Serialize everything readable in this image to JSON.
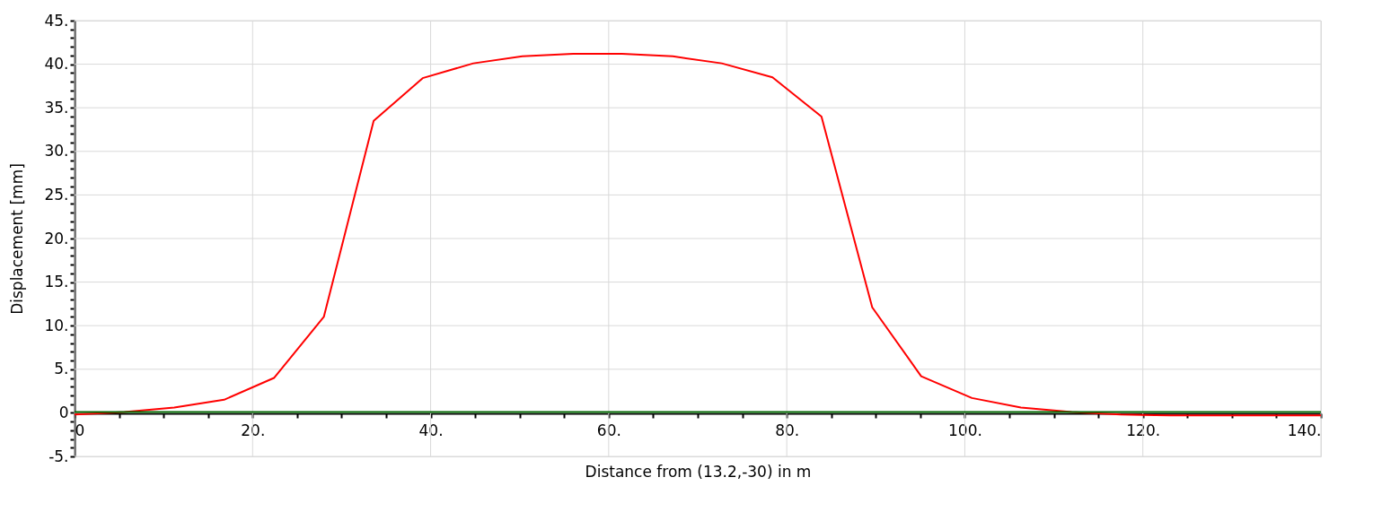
{
  "chart_data": {
    "type": "line",
    "xlabel": "Distance from (13.2,-30) in m",
    "ylabel": "Displacement [mm]",
    "xlim": [
      0,
      140
    ],
    "ylim": [
      -5,
      45
    ],
    "xticks": [
      {
        "value": 0,
        "label": "0"
      },
      {
        "value": 5,
        "label": null
      },
      {
        "value": 10,
        "label": null
      },
      {
        "value": 15,
        "label": null
      },
      {
        "value": 20,
        "label": "20."
      },
      {
        "value": 25,
        "label": null
      },
      {
        "value": 30,
        "label": null
      },
      {
        "value": 35,
        "label": null
      },
      {
        "value": 40,
        "label": "40."
      },
      {
        "value": 45,
        "label": null
      },
      {
        "value": 50,
        "label": null
      },
      {
        "value": 55,
        "label": null
      },
      {
        "value": 60,
        "label": "60."
      },
      {
        "value": 65,
        "label": null
      },
      {
        "value": 70,
        "label": null
      },
      {
        "value": 75,
        "label": null
      },
      {
        "value": 80,
        "label": "80."
      },
      {
        "value": 85,
        "label": null
      },
      {
        "value": 90,
        "label": null
      },
      {
        "value": 95,
        "label": null
      },
      {
        "value": 100,
        "label": "100."
      },
      {
        "value": 105,
        "label": null
      },
      {
        "value": 110,
        "label": null
      },
      {
        "value": 115,
        "label": null
      },
      {
        "value": 120,
        "label": "120."
      },
      {
        "value": 125,
        "label": null
      },
      {
        "value": 130,
        "label": null
      },
      {
        "value": 135,
        "label": null
      },
      {
        "value": 140,
        "label": "140."
      }
    ],
    "yticks": [
      {
        "value": -5,
        "label": "-5."
      },
      {
        "value": -4,
        "label": null
      },
      {
        "value": -3,
        "label": null
      },
      {
        "value": -2,
        "label": null
      },
      {
        "value": -1,
        "label": null
      },
      {
        "value": 0,
        "label": "0"
      },
      {
        "value": 1,
        "label": null
      },
      {
        "value": 2,
        "label": null
      },
      {
        "value": 3,
        "label": null
      },
      {
        "value": 4,
        "label": null
      },
      {
        "value": 5,
        "label": "5."
      },
      {
        "value": 6,
        "label": null
      },
      {
        "value": 7,
        "label": null
      },
      {
        "value": 8,
        "label": null
      },
      {
        "value": 9,
        "label": null
      },
      {
        "value": 10,
        "label": "10."
      },
      {
        "value": 11,
        "label": null
      },
      {
        "value": 12,
        "label": null
      },
      {
        "value": 13,
        "label": null
      },
      {
        "value": 14,
        "label": null
      },
      {
        "value": 15,
        "label": "15."
      },
      {
        "value": 16,
        "label": null
      },
      {
        "value": 17,
        "label": null
      },
      {
        "value": 18,
        "label": null
      },
      {
        "value": 19,
        "label": null
      },
      {
        "value": 20,
        "label": "20."
      },
      {
        "value": 21,
        "label": null
      },
      {
        "value": 22,
        "label": null
      },
      {
        "value": 23,
        "label": null
      },
      {
        "value": 24,
        "label": null
      },
      {
        "value": 25,
        "label": "25."
      },
      {
        "value": 26,
        "label": null
      },
      {
        "value": 27,
        "label": null
      },
      {
        "value": 28,
        "label": null
      },
      {
        "value": 29,
        "label": null
      },
      {
        "value": 30,
        "label": "30."
      },
      {
        "value": 31,
        "label": null
      },
      {
        "value": 32,
        "label": null
      },
      {
        "value": 33,
        "label": null
      },
      {
        "value": 34,
        "label": null
      },
      {
        "value": 35,
        "label": "35."
      },
      {
        "value": 36,
        "label": null
      },
      {
        "value": 37,
        "label": null
      },
      {
        "value": 38,
        "label": null
      },
      {
        "value": 39,
        "label": null
      },
      {
        "value": 40,
        "label": "40."
      },
      {
        "value": 41,
        "label": null
      },
      {
        "value": 42,
        "label": null
      },
      {
        "value": 43,
        "label": null
      },
      {
        "value": 44,
        "label": null
      },
      {
        "value": 45,
        "label": "45."
      }
    ],
    "grid": true,
    "marker": "none",
    "line_style": "solid",
    "series": [
      {
        "color": "#ff0000",
        "x": [
          0,
          5.6,
          11.2,
          16.8,
          22.4,
          28,
          33.6,
          39.1,
          44.8,
          50.3,
          56,
          61.5,
          67.2,
          72.7,
          78.4,
          83.9,
          89.6,
          95.1,
          100.8,
          106.3,
          112,
          117.5,
          123.1,
          140
        ],
        "values": [
          -0.2,
          0.1,
          0.6,
          1.5,
          4.0,
          11.0,
          33.5,
          38.4,
          40.1,
          40.9,
          41.2,
          41.2,
          40.9,
          40.1,
          38.5,
          34.0,
          12.1,
          4.2,
          1.7,
          0.6,
          0.1,
          -0.2,
          -0.3,
          -0.3
        ]
      },
      {
        "color": "#006400",
        "x": [
          0,
          140
        ],
        "values": [
          0.1,
          0.1
        ]
      }
    ]
  }
}
